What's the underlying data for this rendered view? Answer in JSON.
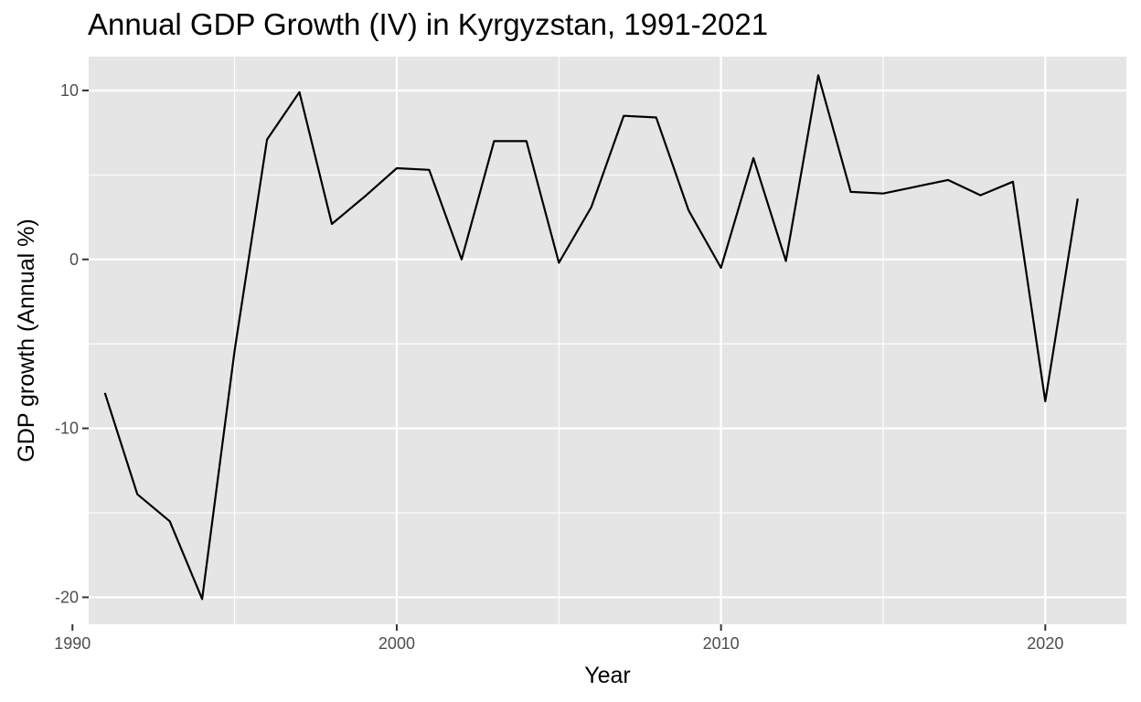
{
  "chart_data": {
    "type": "line",
    "title": "Annual GDP Growth (IV) in Kyrgyzstan, 1991-2021",
    "xlabel": "Year",
    "ylabel": "GDP growth (Annual %)",
    "x": [
      1991,
      1992,
      1993,
      1994,
      1995,
      1996,
      1997,
      1998,
      1999,
      2000,
      2001,
      2002,
      2003,
      2004,
      2005,
      2006,
      2007,
      2008,
      2009,
      2010,
      2011,
      2012,
      2013,
      2014,
      2015,
      2016,
      2017,
      2018,
      2019,
      2020,
      2021
    ],
    "series": [
      {
        "values": [
          -7.9,
          -13.9,
          -15.5,
          -20.1,
          -5.4,
          7.1,
          9.9,
          2.1,
          3.7,
          5.4,
          5.3,
          0.0,
          7.0,
          7.0,
          -0.2,
          3.1,
          8.5,
          8.4,
          2.9,
          -0.5,
          6.0,
          -0.1,
          10.9,
          4.0,
          3.9,
          4.3,
          4.7,
          3.8,
          4.6,
          -8.4,
          3.6
        ],
        "color": "#000000"
      }
    ],
    "xlim": [
      1990.5,
      2022.5
    ],
    "ylim": [
      -21.6,
      12.0
    ],
    "x_ticks": [
      1990,
      2000,
      2010,
      2020
    ],
    "x_tick_labels": [
      "1990",
      "2000",
      "2010",
      "2020"
    ],
    "y_ticks": [
      -20,
      -10,
      0,
      10
    ],
    "y_tick_labels": [
      "-20",
      "-10",
      "0",
      "10"
    ],
    "x_minor_ticks": [
      1995,
      2005,
      2015
    ],
    "y_minor_ticks": [
      -15,
      -5,
      5
    ],
    "grid": true,
    "legend": "none",
    "panel_background": "#e5e5e5",
    "grid_color": "#ffffff"
  }
}
